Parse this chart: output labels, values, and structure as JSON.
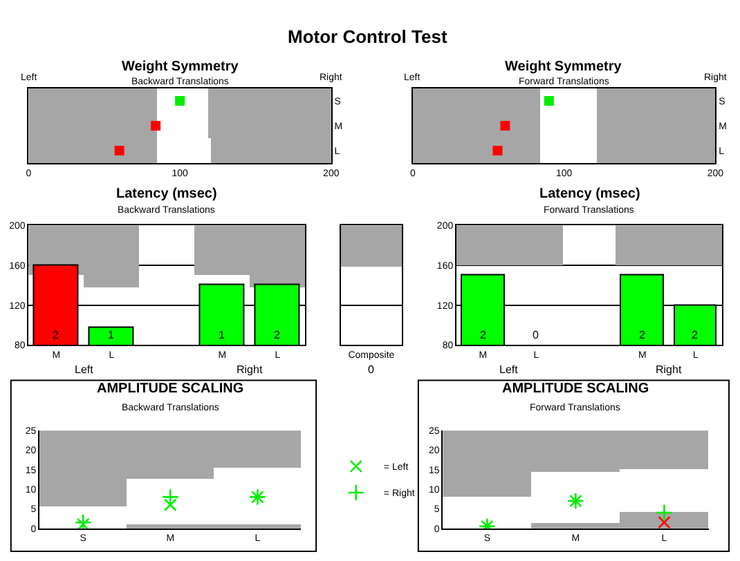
{
  "chart_data": [
    {
      "type": "other",
      "title": "Motor Control Test"
    },
    {
      "type": "bar",
      "orientation": "horizontal",
      "title": "Weight Symmetry",
      "subtitle": "Backward Translations",
      "categories": [
        "S",
        "M",
        "L"
      ],
      "xlim": [
        0,
        200
      ],
      "xticks": [
        0,
        100,
        200
      ],
      "annotations": [
        "Left",
        "Right"
      ],
      "series": [
        {
          "color": "#a6a6a6",
          "base": [
            0,
            0,
            0
          ],
          "values": [
            85,
            85,
            85
          ]
        },
        {
          "color": "#a6a6a6",
          "base": [
            119,
            119,
            121
          ],
          "values": [
            81,
            81,
            79
          ]
        },
        {
          "type": "scatter",
          "marker": "square",
          "colors": [
            "#00ee00",
            "#ff0000",
            "#ff0000"
          ],
          "values": [
            100,
            84,
            60
          ]
        }
      ]
    },
    {
      "type": "bar",
      "orientation": "horizontal",
      "title": "Weight Symmetry",
      "subtitle": "Forward Translations",
      "categories": [
        "S",
        "M",
        "L"
      ],
      "xlim": [
        0,
        200
      ],
      "xticks": [
        0,
        100,
        200
      ],
      "annotations": [
        "Left",
        "Right"
      ],
      "series": [
        {
          "color": "#a6a6a6",
          "base": [
            0,
            0,
            0
          ],
          "values": [
            84,
            84,
            84
          ]
        },
        {
          "color": "#a6a6a6",
          "base": [
            122,
            122,
            122
          ],
          "values": [
            78,
            78,
            78
          ]
        },
        {
          "type": "scatter",
          "marker": "square",
          "colors": [
            "#00ee00",
            "#ff0000",
            "#ff0000"
          ],
          "values": [
            90,
            61,
            56
          ]
        }
      ]
    },
    {
      "type": "bar",
      "title": "Latency (msec)",
      "subtitle": "Backward Translations",
      "categories": [
        "M",
        "L",
        null,
        "M",
        "L"
      ],
      "ylim": [
        80,
        200
      ],
      "yticks": [
        80,
        120,
        160,
        200
      ],
      "grid": "y",
      "annotations": [
        "Left",
        "Right",
        "2",
        "1",
        "1",
        "2"
      ],
      "series": [
        {
          "color": "#a6a6a6",
          "base": [
            150,
            138,
            null,
            150,
            138
          ],
          "values": [
            50,
            62,
            null,
            50,
            62
          ]
        },
        {
          "colors": [
            "#ff0000",
            "#00ff00",
            null,
            "#00ff00",
            "#00ff00"
          ],
          "values": [
            160,
            98,
            null,
            140,
            140
          ]
        }
      ]
    },
    {
      "type": "bar",
      "categories": [
        "Composite"
      ],
      "ylim": [
        80,
        200
      ],
      "yticks": [
        80,
        120,
        160,
        200
      ],
      "grid": "y",
      "tick_labels": "x",
      "annotations": [
        "0"
      ],
      "series": [
        {
          "color": "#a6a6a6",
          "base": [
            158
          ],
          "values": [
            42
          ]
        }
      ]
    },
    {
      "type": "bar",
      "title": "Latency (msec)",
      "subtitle": "Forward Translations",
      "categories": [
        "M",
        "L",
        null,
        "M",
        "L"
      ],
      "ylim": [
        80,
        200
      ],
      "yticks": [
        80,
        120,
        160,
        200
      ],
      "grid": "y",
      "annotations": [
        "Left",
        "Right",
        "2",
        "0",
        "2",
        "2"
      ],
      "series": [
        {
          "color": "#a6a6a6",
          "base": [
            160,
            160,
            null,
            160,
            160
          ],
          "values": [
            40,
            40,
            null,
            40,
            40
          ]
        },
        {
          "colors": [
            "#00ff00",
            null,
            null,
            "#00ff00",
            "#00ff00"
          ],
          "values": [
            150,
            null,
            null,
            150,
            120
          ]
        }
      ]
    },
    {
      "type": "scatter",
      "title": "AMPLITUDE SCALING",
      "subtitle": "Backward Translations",
      "categories": [
        "S",
        "M",
        "L"
      ],
      "ylim": [
        0,
        25
      ],
      "yticks": [
        0,
        5,
        10,
        15,
        20,
        25
      ],
      "legend": "right",
      "series": [
        {
          "type": "bar",
          "color": "#a6a6a6",
          "base": [
            5.5,
            12.5,
            15.5
          ],
          "values": [
            19.5,
            12.5,
            9.5
          ]
        },
        {
          "type": "bar",
          "color": "#a6a6a6",
          "base": [
            null,
            0,
            0
          ],
          "values": [
            null,
            1,
            1
          ]
        },
        {
          "name": "= Left",
          "marker": "cross",
          "colors": [
            "#00ee00",
            "#00ee00",
            "#00ee00"
          ],
          "values": [
            1,
            6,
            8
          ]
        },
        {
          "name": "= Right",
          "marker": "plus",
          "colors": [
            "#00ee00",
            "#00ee00",
            "#00ee00"
          ],
          "values": [
            1.5,
            8,
            8
          ]
        }
      ]
    },
    {
      "type": "scatter",
      "title": "AMPLITUDE SCALING",
      "subtitle": "Forward Translations",
      "categories": [
        "S",
        "M",
        "L"
      ],
      "ylim": [
        0,
        25
      ],
      "yticks": [
        0,
        5,
        10,
        15,
        20,
        25
      ],
      "series": [
        {
          "type": "bar",
          "color": "#a6a6a6",
          "base": [
            8,
            14.5,
            15
          ],
          "values": [
            17,
            10.5,
            10
          ]
        },
        {
          "type": "bar",
          "color": "#a6a6a6",
          "base": [
            null,
            0,
            0
          ],
          "values": [
            null,
            1.5,
            4
          ]
        },
        {
          "marker": "cross",
          "colors": [
            "#00ee00",
            "#00ee00",
            "#ff0000"
          ],
          "values": [
            0.5,
            7,
            1.5
          ]
        },
        {
          "marker": "plus",
          "colors": [
            "#00ee00",
            "#00ee00",
            "#00ee00"
          ],
          "values": [
            0.5,
            7,
            4
          ]
        }
      ]
    }
  ]
}
